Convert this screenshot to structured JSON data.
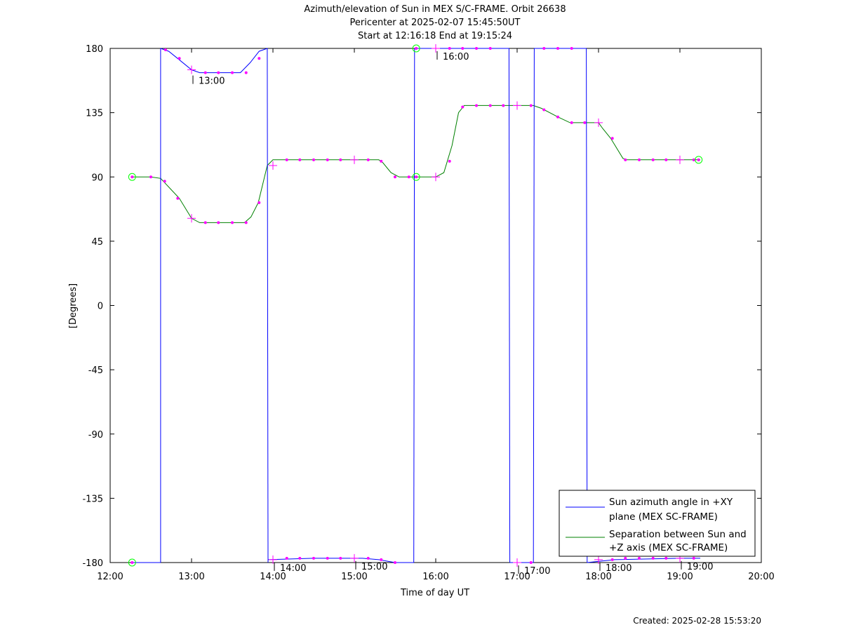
{
  "chart_data": {
    "type": "line",
    "title_lines": [
      "Azimuth/elevation of Sun in MEX S/C-FRAME.  Orbit 26638",
      "Pericenter at 2025-02-07 15:45:50UT",
      "Start at 12:16:18 End at 19:15:24"
    ],
    "xlabel": "Time of day UT",
    "ylabel": "[Degrees]",
    "xlim": [
      12,
      20
    ],
    "ylim": [
      -180,
      180
    ],
    "x_ticks": [
      12,
      13,
      14,
      15,
      16,
      17,
      18,
      19,
      20
    ],
    "x_tick_labels": [
      "12:00",
      "13:00",
      "14:00",
      "15:00",
      "16:00",
      "17:00",
      "18:00",
      "19:00",
      "20:00"
    ],
    "y_ticks": [
      180,
      135,
      90,
      45,
      0,
      -45,
      -90,
      -135,
      -180
    ],
    "y_tick_labels": [
      "180",
      "135",
      "90",
      "45",
      "0",
      "-45",
      "-90",
      "-135",
      "-180"
    ],
    "legend_position": "bottom-right",
    "colors": {
      "azimuth": "#0000ff",
      "separation": "#008000",
      "markers": "#ff00ff",
      "circles": "#00ff00"
    },
    "series": [
      {
        "name": "Sun azimuth angle in +XY plane (MEX SC-FRAME)",
        "legend_lines": [
          "Sun azimuth angle in +XY",
          "plane (MEX SC-FRAME)"
        ],
        "color": "#0000ff",
        "segments": [
          [
            [
              12.27,
              -180
            ],
            [
              12.62,
              -180
            ]
          ],
          [
            [
              12.62,
              -180
            ],
            [
              12.62,
              180
            ]
          ],
          [
            [
              12.62,
              180
            ],
            [
              12.72,
              178
            ],
            [
              12.85,
              172
            ],
            [
              13.0,
              165
            ],
            [
              13.1,
              163
            ],
            [
              13.6,
              163
            ],
            [
              13.72,
              170
            ],
            [
              13.83,
              178
            ],
            [
              13.93,
              180
            ]
          ],
          [
            [
              13.93,
              180
            ],
            [
              13.94,
              -180
            ]
          ],
          [
            [
              13.94,
              -178
            ],
            [
              14.5,
              -177
            ],
            [
              15.1,
              -177
            ],
            [
              15.3,
              -178
            ],
            [
              15.5,
              -180
            ],
            [
              15.73,
              -180
            ]
          ],
          [
            [
              15.73,
              -180
            ],
            [
              15.74,
              180
            ]
          ],
          [
            [
              15.74,
              180
            ],
            [
              16.0,
              180
            ],
            [
              16.9,
              180
            ]
          ],
          [
            [
              16.9,
              180
            ],
            [
              16.91,
              -180
            ]
          ],
          [
            [
              16.91,
              -180
            ],
            [
              17.2,
              -180
            ]
          ],
          [
            [
              17.2,
              -180
            ],
            [
              17.21,
              180
            ]
          ],
          [
            [
              17.21,
              180
            ],
            [
              17.85,
              180
            ]
          ],
          [
            [
              17.85,
              180
            ],
            [
              17.86,
              -180
            ]
          ],
          [
            [
              17.86,
              -180
            ],
            [
              18.2,
              -178
            ],
            [
              19.0,
              -177
            ],
            [
              19.25,
              -177
            ]
          ]
        ]
      },
      {
        "name": "Separation between Sun and +Z axis (MEX SC-FRAME)",
        "legend_lines": [
          "Separation between Sun and",
          "+Z axis (MEX SC-FRAME)"
        ],
        "color": "#008000",
        "points": [
          [
            12.27,
            90
          ],
          [
            12.5,
            90
          ],
          [
            12.62,
            89
          ],
          [
            12.85,
            75
          ],
          [
            13.0,
            61
          ],
          [
            13.1,
            58
          ],
          [
            13.3,
            58
          ],
          [
            13.5,
            58
          ],
          [
            13.65,
            58
          ],
          [
            13.73,
            62
          ],
          [
            13.82,
            72
          ],
          [
            13.93,
            98
          ],
          [
            14.0,
            102
          ],
          [
            14.2,
            102
          ],
          [
            14.5,
            102
          ],
          [
            14.8,
            102
          ],
          [
            15.0,
            102
          ],
          [
            15.3,
            102
          ],
          [
            15.35,
            100
          ],
          [
            15.45,
            93
          ],
          [
            15.55,
            90
          ],
          [
            15.73,
            90
          ],
          [
            16.0,
            90
          ],
          [
            16.1,
            93
          ],
          [
            16.2,
            112
          ],
          [
            16.28,
            135
          ],
          [
            16.35,
            140
          ],
          [
            16.5,
            140
          ],
          [
            17.0,
            140
          ],
          [
            17.2,
            140
          ],
          [
            17.3,
            138
          ],
          [
            17.5,
            132
          ],
          [
            17.65,
            128
          ],
          [
            18.0,
            128
          ],
          [
            18.05,
            124
          ],
          [
            18.15,
            117
          ],
          [
            18.3,
            103
          ],
          [
            18.35,
            102
          ],
          [
            18.5,
            102
          ],
          [
            18.7,
            102
          ],
          [
            19.0,
            102
          ],
          [
            19.25,
            102
          ]
        ]
      }
    ],
    "azimuth_dots": [
      [
        12.68,
        179
      ],
      [
        12.85,
        173
      ],
      [
        13.17,
        163
      ],
      [
        13.33,
        163
      ],
      [
        13.5,
        163
      ],
      [
        13.67,
        163
      ],
      [
        13.83,
        173
      ],
      [
        14.17,
        -177
      ],
      [
        14.33,
        -177
      ],
      [
        14.5,
        -177
      ],
      [
        14.67,
        -177
      ],
      [
        14.83,
        -177
      ],
      [
        15.17,
        -177
      ],
      [
        15.33,
        -178
      ],
      [
        15.5,
        -180
      ],
      [
        16.17,
        180
      ],
      [
        16.33,
        180
      ],
      [
        16.5,
        180
      ],
      [
        16.67,
        180
      ],
      [
        17.17,
        -180
      ],
      [
        17.33,
        180
      ],
      [
        17.5,
        180
      ],
      [
        17.67,
        180
      ],
      [
        18.17,
        -178
      ],
      [
        18.33,
        -177
      ],
      [
        18.5,
        -177
      ],
      [
        18.67,
        -177
      ],
      [
        18.83,
        -177
      ],
      [
        19.17,
        -177
      ]
    ],
    "separation_dots": [
      [
        12.5,
        90
      ],
      [
        12.67,
        87
      ],
      [
        12.83,
        75
      ],
      [
        13.17,
        58
      ],
      [
        13.33,
        58
      ],
      [
        13.5,
        58
      ],
      [
        13.67,
        58
      ],
      [
        13.83,
        72
      ],
      [
        14.17,
        102
      ],
      [
        14.33,
        102
      ],
      [
        14.5,
        102
      ],
      [
        14.67,
        102
      ],
      [
        14.83,
        102
      ],
      [
        15.17,
        102
      ],
      [
        15.33,
        101
      ],
      [
        15.5,
        90
      ],
      [
        15.67,
        90
      ],
      [
        16.17,
        101
      ],
      [
        16.33,
        139
      ],
      [
        16.5,
        140
      ],
      [
        16.67,
        140
      ],
      [
        16.83,
        140
      ],
      [
        17.17,
        140
      ],
      [
        17.33,
        137
      ],
      [
        17.5,
        132
      ],
      [
        17.67,
        128
      ],
      [
        17.83,
        128
      ],
      [
        18.17,
        117
      ],
      [
        18.33,
        102
      ],
      [
        18.5,
        102
      ],
      [
        18.67,
        102
      ],
      [
        18.83,
        102
      ],
      [
        19.17,
        102
      ]
    ],
    "hour_crosses": [
      [
        13,
        165
      ],
      [
        13,
        61
      ],
      [
        14,
        -178
      ],
      [
        14,
        98
      ],
      [
        15,
        -177
      ],
      [
        15,
        102
      ],
      [
        16,
        180
      ],
      [
        16,
        90
      ],
      [
        17,
        -180
      ],
      [
        17,
        140
      ],
      [
        18,
        -178
      ],
      [
        18,
        128
      ],
      [
        19,
        -177
      ],
      [
        19,
        102
      ]
    ],
    "start_end_circles": [
      [
        12.27,
        90
      ],
      [
        12.27,
        -180
      ],
      [
        15.76,
        180
      ],
      [
        15.76,
        90
      ],
      [
        19.23,
        102
      ]
    ],
    "hour_annotations": [
      {
        "x": 13,
        "y": 163,
        "label": "13:00"
      },
      {
        "x": 14,
        "y": -178,
        "label": "14:00"
      },
      {
        "x": 15,
        "y": -177,
        "label": "15:00"
      },
      {
        "x": 16,
        "y": 180,
        "label": "16:00"
      },
      {
        "x": 17,
        "y": -180,
        "label": "17:00"
      },
      {
        "x": 18,
        "y": -178,
        "label": "18:00"
      },
      {
        "x": 19,
        "y": -177,
        "label": "19:00"
      }
    ]
  },
  "footer": {
    "created": "Created: 2025-02-28 15:53:20"
  }
}
